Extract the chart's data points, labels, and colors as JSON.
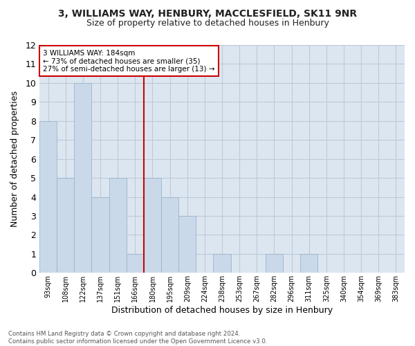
{
  "title1": "3, WILLIAMS WAY, HENBURY, MACCLESFIELD, SK11 9NR",
  "title2": "Size of property relative to detached houses in Henbury",
  "xlabel": "Distribution of detached houses by size in Henbury",
  "ylabel": "Number of detached properties",
  "footer": "Contains HM Land Registry data © Crown copyright and database right 2024.\nContains public sector information licensed under the Open Government Licence v3.0.",
  "bin_labels": [
    "93sqm",
    "108sqm",
    "122sqm",
    "137sqm",
    "151sqm",
    "166sqm",
    "180sqm",
    "195sqm",
    "209sqm",
    "224sqm",
    "238sqm",
    "253sqm",
    "267sqm",
    "282sqm",
    "296sqm",
    "311sqm",
    "325sqm",
    "340sqm",
    "354sqm",
    "369sqm",
    "383sqm"
  ],
  "counts": [
    8,
    5,
    10,
    4,
    5,
    1,
    5,
    4,
    3,
    0,
    1,
    0,
    0,
    1,
    0,
    1,
    0,
    0,
    0,
    0,
    0
  ],
  "bar_color": "#c9d9ea",
  "bar_edge_color": "#9ab4cc",
  "property_label": "3 WILLIAMS WAY: 184sqm",
  "annotation_line1": "← 73% of detached houses are smaller (35)",
  "annotation_line2": "27% of semi-detached houses are larger (13) →",
  "annotation_box_color": "#cc0000",
  "ylim": [
    0,
    12
  ],
  "yticks": [
    0,
    1,
    2,
    3,
    4,
    5,
    6,
    7,
    8,
    9,
    10,
    11,
    12
  ],
  "grid_color": "#c0cad8",
  "bg_color": "#dce6f0",
  "fig_bg": "#ffffff"
}
